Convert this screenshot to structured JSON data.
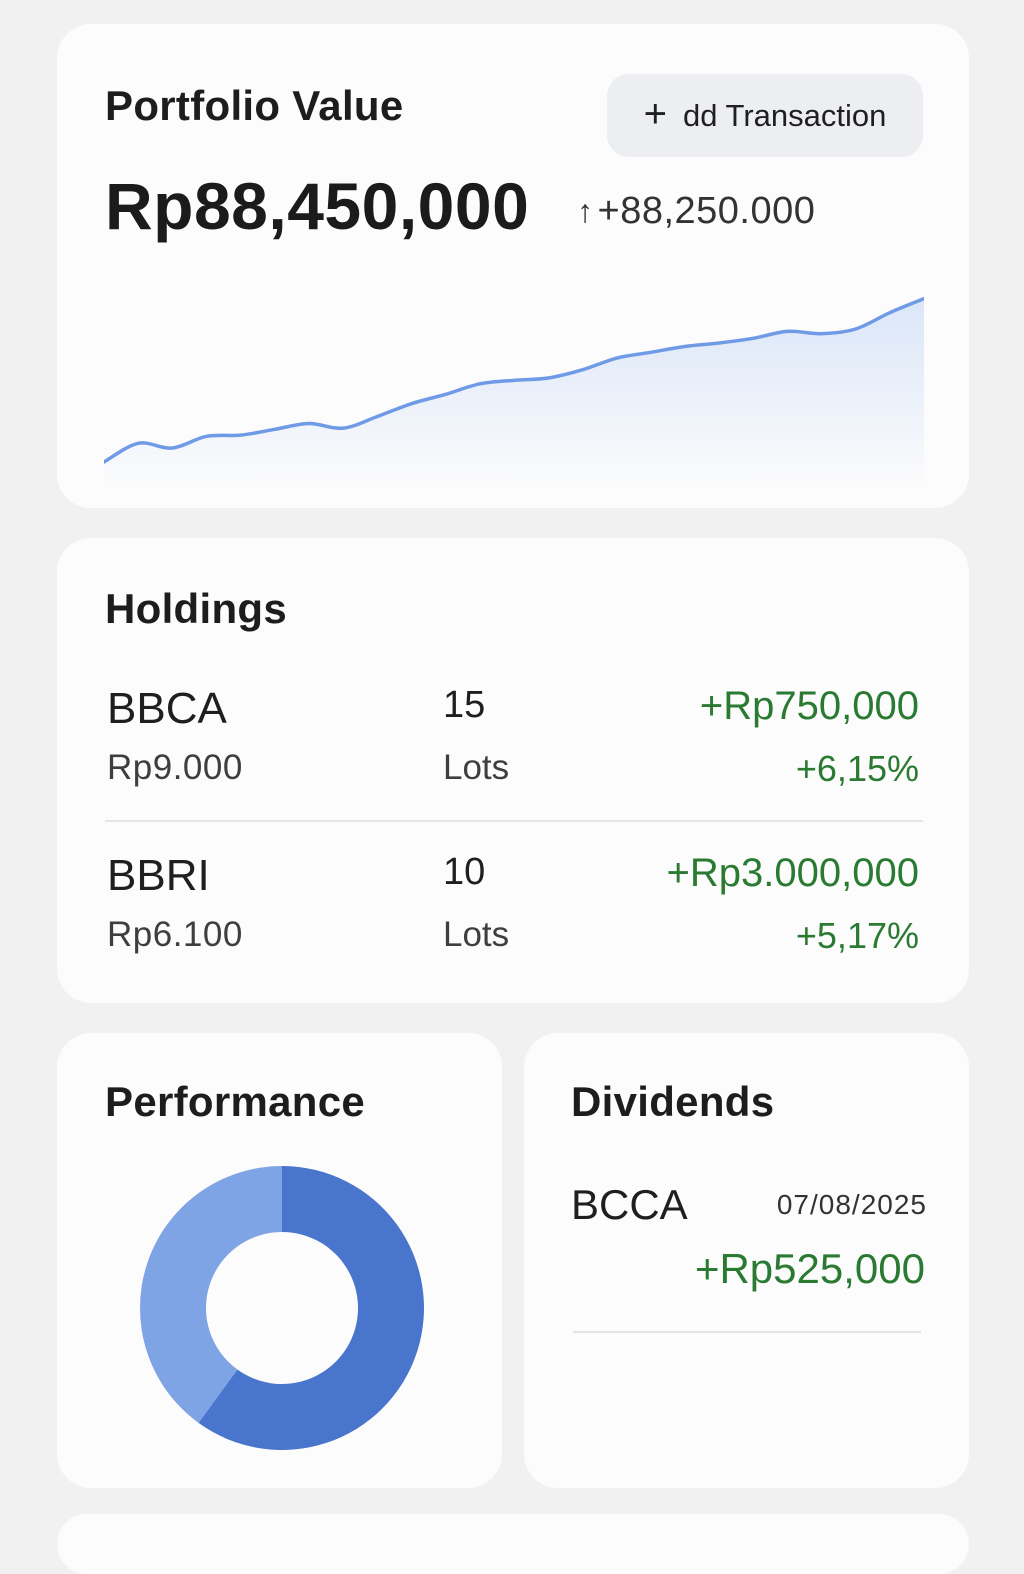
{
  "portfolio": {
    "title": "Portfolio Value",
    "add_button_label": "dd Transaction",
    "add_button_icon": "plus-icon",
    "total_value": "Rp88,450,000",
    "change": "+88,250.000",
    "change_icon": "arrow-up-icon",
    "accent_color": "#6f9be6",
    "trend": [
      0.06,
      0.22,
      0.18,
      0.28,
      0.29,
      0.34,
      0.39,
      0.35,
      0.45,
      0.56,
      0.64,
      0.73,
      0.76,
      0.78,
      0.85,
      0.95,
      1.0,
      1.05,
      1.08,
      1.12,
      1.18,
      1.16,
      1.2,
      1.34,
      1.46
    ]
  },
  "holdings": {
    "title": "Holdings",
    "rows": [
      {
        "ticker": "BBCA",
        "price": "Rp9.000",
        "lots": "15",
        "lots_label": "Lots",
        "gain": "+Rp750,000",
        "pct": "+6,15%"
      },
      {
        "ticker": "BBRI",
        "price": "Rp6.100",
        "lots": "10",
        "lots_label": "Lots",
        "gain": "+Rp3.000,000",
        "pct": "+5,17%"
      }
    ],
    "positive_color": "#2b7a32"
  },
  "performance": {
    "title": "Performance",
    "chart_data": {
      "type": "pie",
      "values": [
        60,
        40
      ],
      "colors": [
        "#4a75cc",
        "#7ea4e6"
      ]
    }
  },
  "dividends": {
    "title": "Dividends",
    "items": [
      {
        "ticker": "BCCA",
        "date": "07/08/2025",
        "amount": "+Rp525,000"
      }
    ]
  }
}
